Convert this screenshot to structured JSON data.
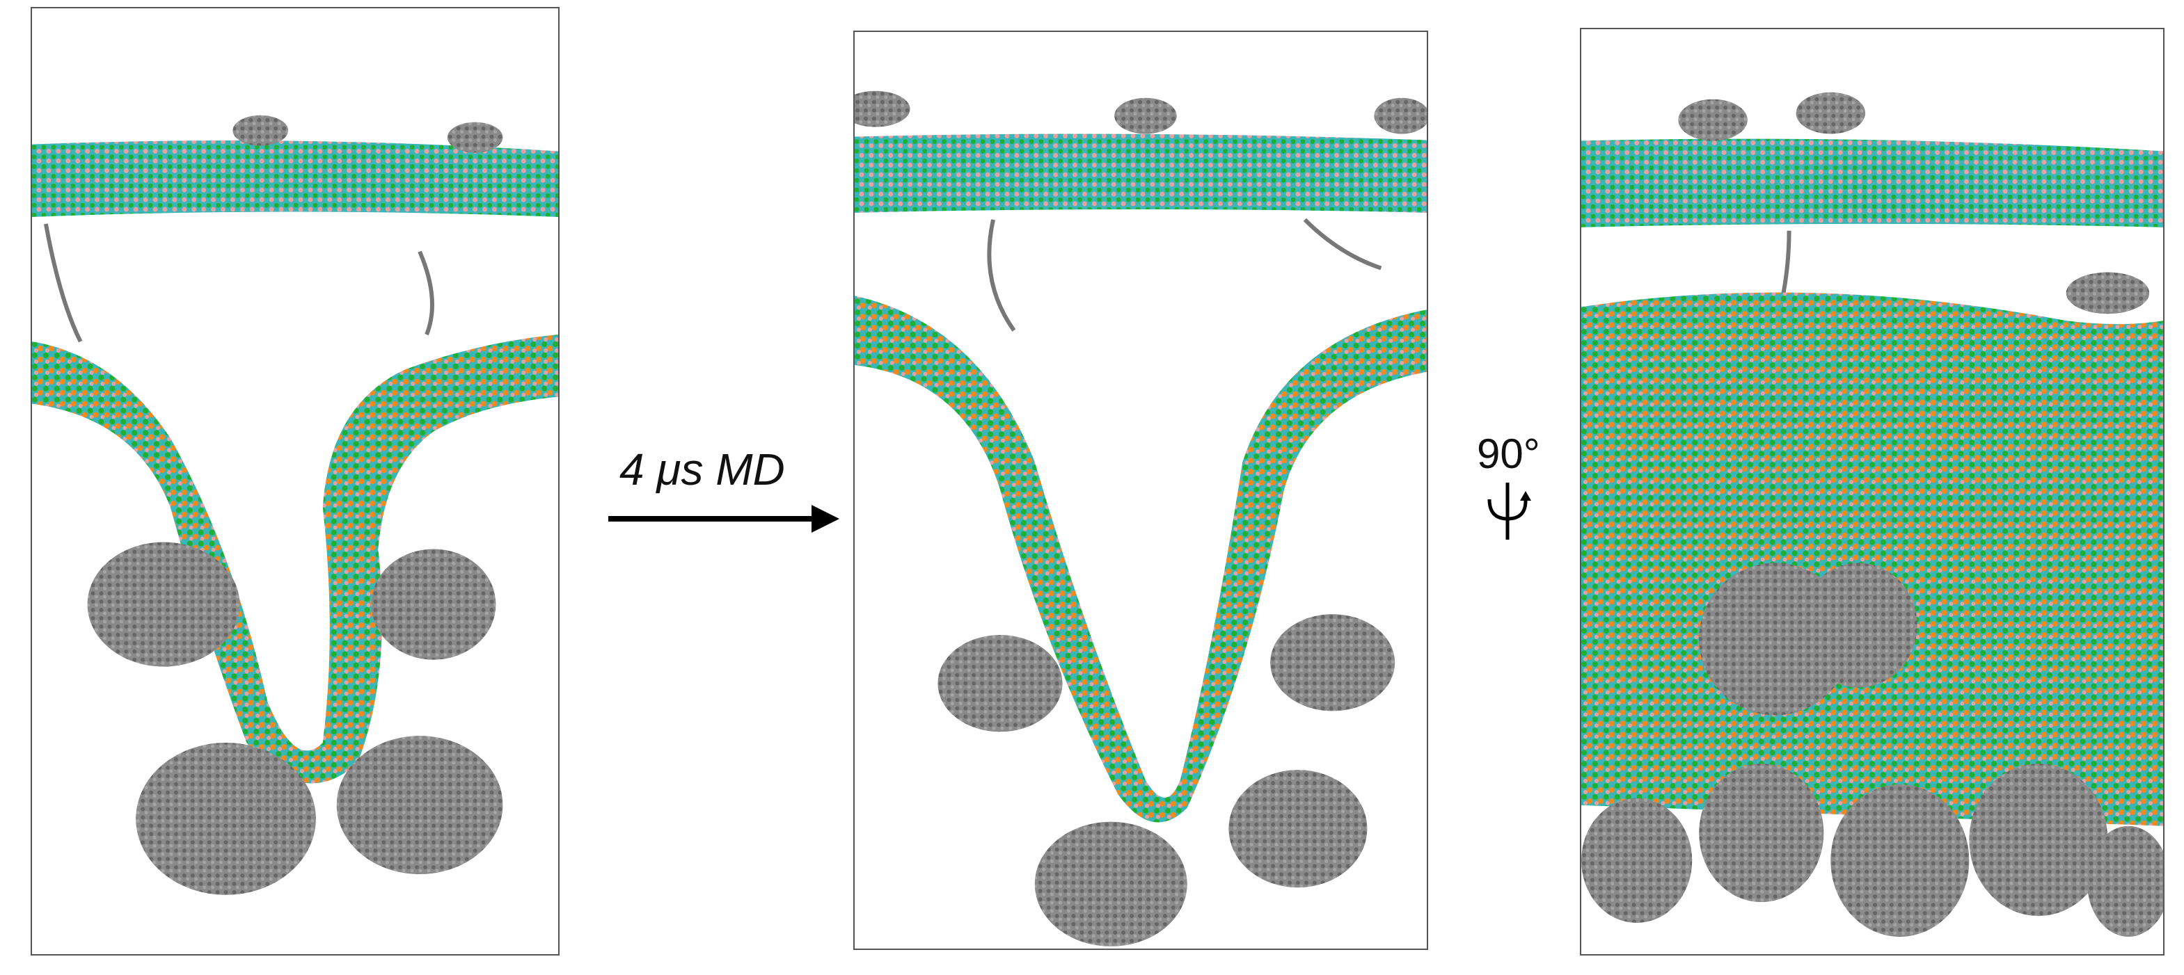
{
  "annotations": {
    "arrow_label": "4 μs MD",
    "rotation_label": "90°"
  },
  "colors": {
    "lipid_green": "#1fb02f",
    "lipid_cyan": "#38b6b8",
    "lipid_orange": "#f08a1c",
    "lipid_pink": "#e9a0a0",
    "protein_gray": "#7f7f7f",
    "panel_border": "#555555",
    "arrow": "#000000"
  },
  "panels": [
    {
      "id": "initial-state"
    },
    {
      "id": "after-md"
    },
    {
      "id": "rotated-view"
    }
  ]
}
